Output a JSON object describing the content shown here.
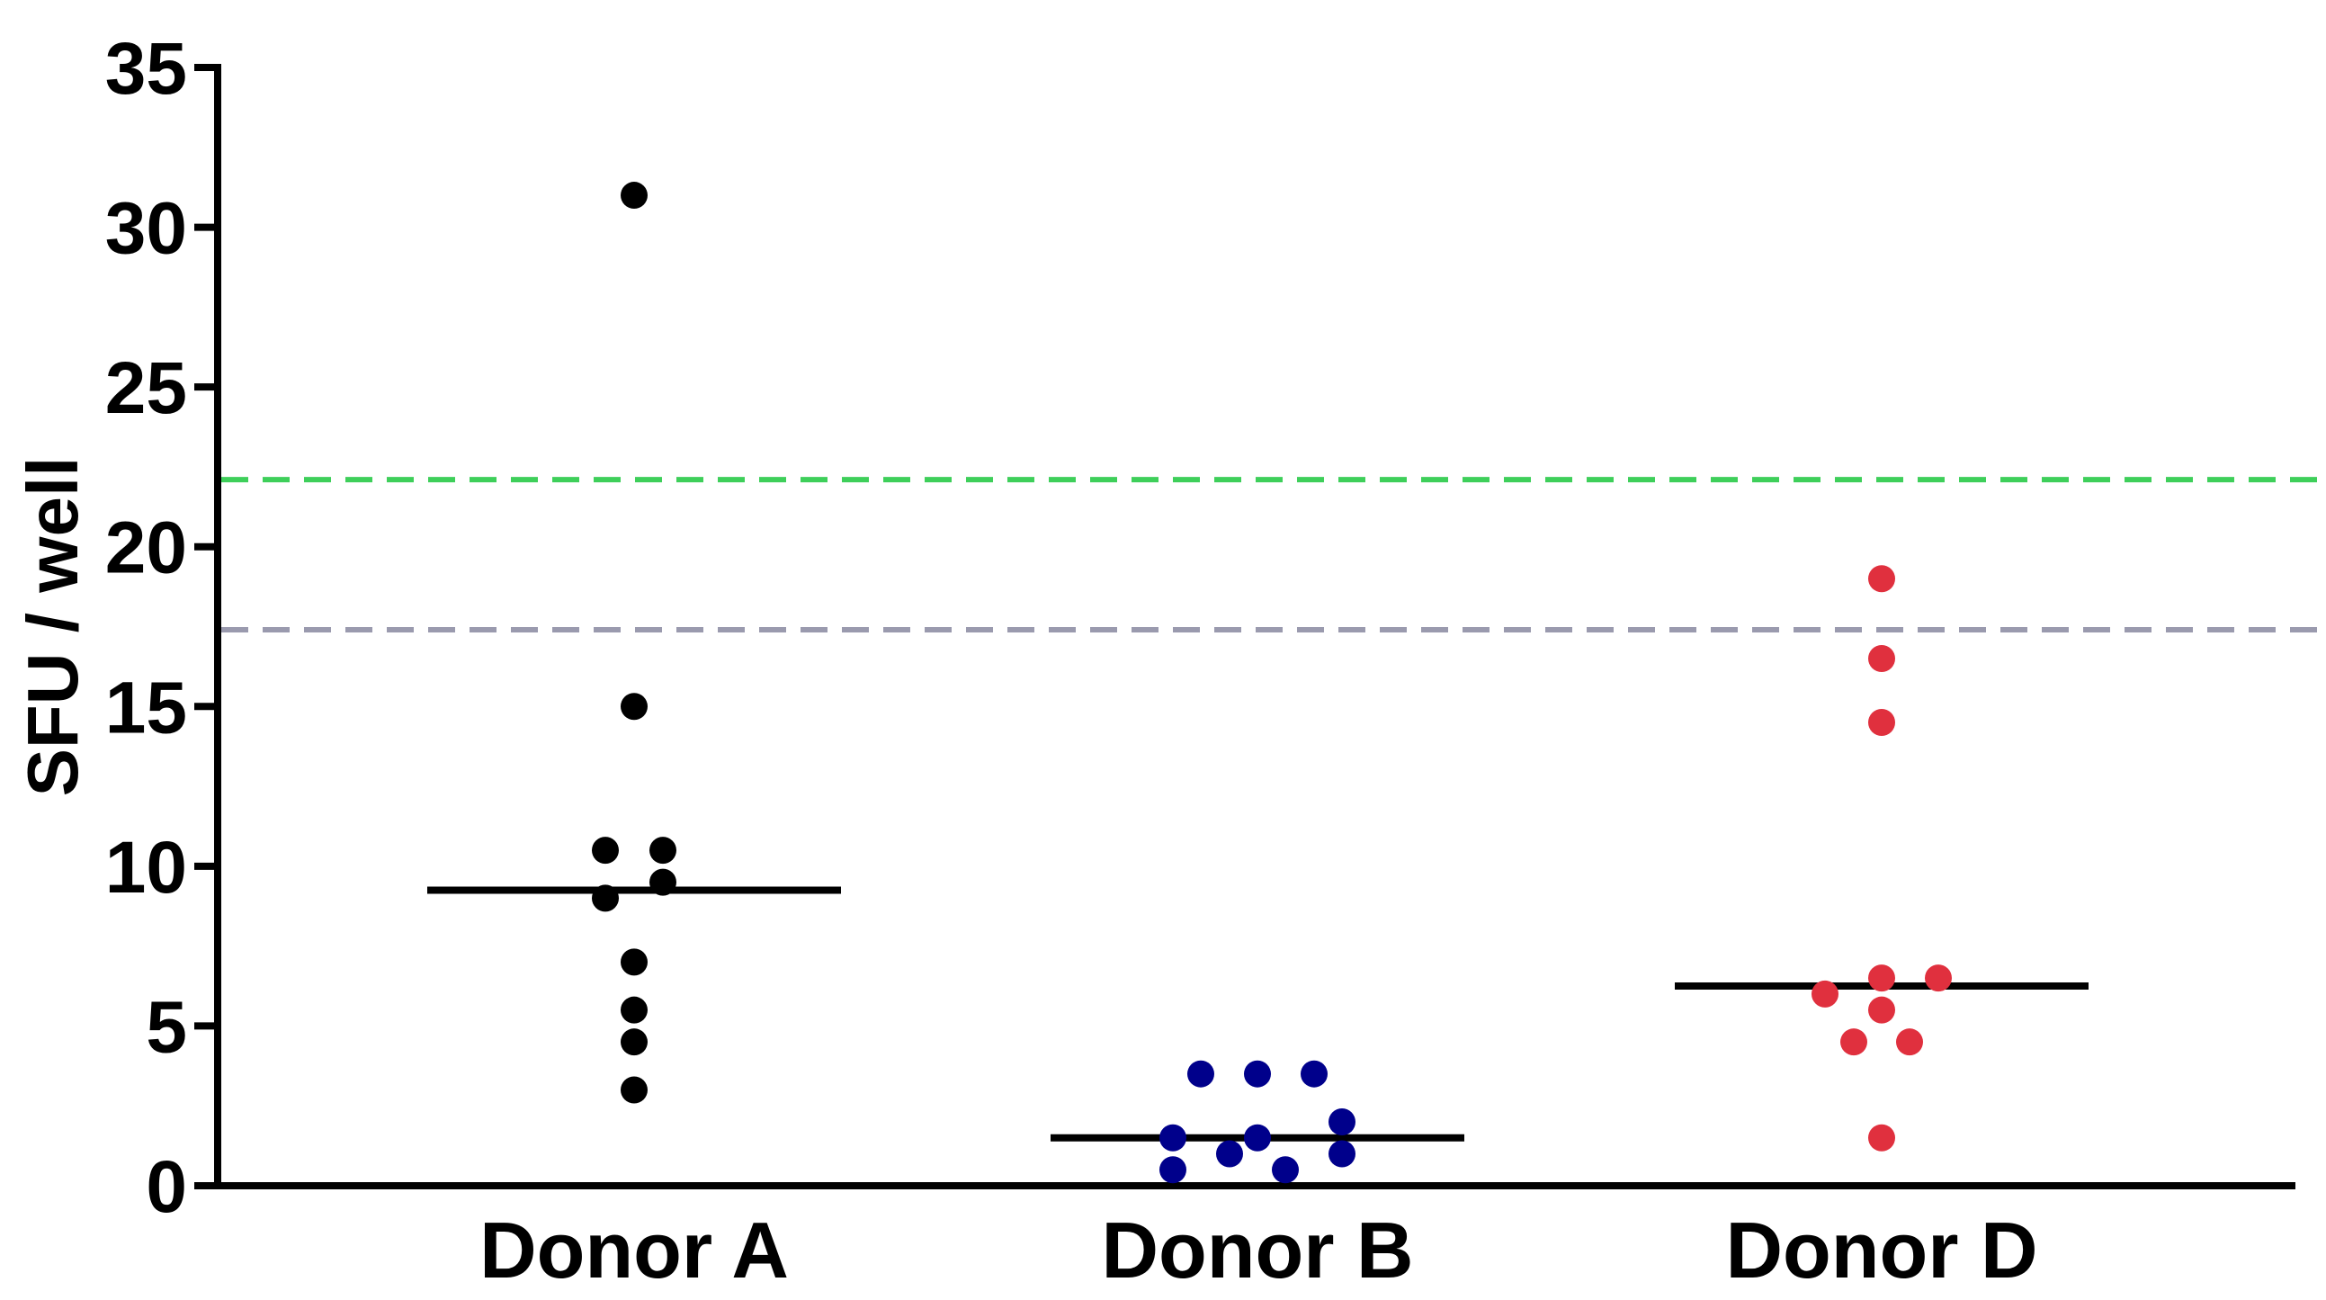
{
  "chart_data": {
    "type": "scatter",
    "title": "",
    "xlabel": "",
    "ylabel": "SFU / well",
    "ylim": [
      0,
      35
    ],
    "yticks": [
      0,
      5,
      10,
      15,
      20,
      25,
      30,
      35
    ],
    "yticks_labels": [
      "0",
      "5",
      "10",
      "15",
      "20",
      "25",
      "30",
      "35"
    ],
    "grid": false,
    "categories": [
      "Donor A",
      "Donor B",
      "Donor D"
    ],
    "series": [
      {
        "name": "Donor A",
        "color": "#000000",
        "points": [
          31,
          15,
          10.5,
          10.5,
          9.5,
          9,
          7,
          5.5,
          4.5,
          3
        ],
        "median": 9.25
      },
      {
        "name": "Donor B",
        "color": "#00008b",
        "points": [
          3.5,
          3.5,
          3.5,
          2,
          1.5,
          1.5,
          1,
          1,
          0.5,
          0.5
        ],
        "median": 1.5
      },
      {
        "name": "Donor D",
        "color": "#e0303e",
        "points": [
          19,
          16.5,
          14.5,
          6.5,
          6.5,
          6,
          5.5,
          4.5,
          4.5,
          1.5
        ],
        "median": 6.25
      }
    ],
    "reference_lines": [
      {
        "name": "green-threshold",
        "value": 22.1,
        "color": "#3ecf5a",
        "style": "dashed"
      },
      {
        "name": "gray-threshold",
        "value": 17.4,
        "color": "#9a9aae",
        "style": "dashed"
      }
    ]
  }
}
